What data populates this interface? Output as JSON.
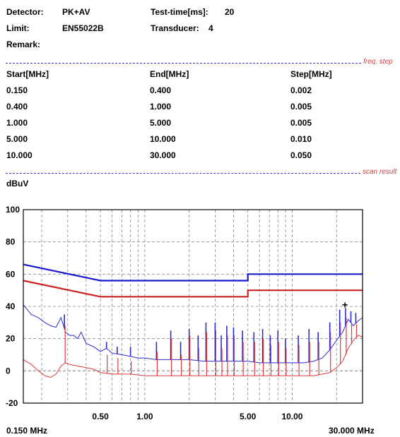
{
  "header": {
    "detector_label": "Detector:",
    "detector_value": "PK+AV",
    "testtime_label": "Test-time[ms]:",
    "testtime_value": "20",
    "limit_label": "Limit:",
    "limit_value": "EN55022B",
    "transducer_label": "Transducer:",
    "transducer_value": "4",
    "remark_label": "Remark:"
  },
  "sections": {
    "freq_step": "freq, step",
    "scan_result": "scan result"
  },
  "table": {
    "headers": [
      "Start[MHz]",
      "End[MHz]",
      "Step[MHz]"
    ],
    "rows": [
      [
        "0.150",
        "0.400",
        "0.002"
      ],
      [
        "0.400",
        "1.000",
        "0.005"
      ],
      [
        "1.000",
        "5.000",
        "0.005"
      ],
      [
        "5.000",
        "10.000",
        "0.010"
      ],
      [
        "10.000",
        "30.000",
        "0.050"
      ]
    ]
  },
  "chart_data": {
    "type": "line",
    "ylabel": "dBuV",
    "xlabel": "",
    "x_scale": "log",
    "xlim": [
      0.15,
      30
    ],
    "ylim": [
      -20,
      100
    ],
    "grid": true,
    "yticks": [
      100,
      80,
      60,
      40,
      20,
      0,
      -20
    ],
    "xtick_labels": [
      {
        "x": 0.5,
        "label": "0.50"
      },
      {
        "x": 1.0,
        "label": "1.00"
      },
      {
        "x": 5.0,
        "label": "5.00"
      },
      {
        "x": 10.0,
        "label": "10.00"
      }
    ],
    "xrange_labels": {
      "start": "0.150 MHz",
      "end": "30.000 MHz"
    },
    "colors": {
      "limit_qp": "#1a1acc",
      "limit_av": "#cc2222",
      "trace_pk": "#2a2ad0",
      "trace_av": "#e03a3a"
    },
    "series": [
      {
        "key": "limit_qp",
        "x": [
          0.15,
          0.5,
          5.0,
          5.0,
          30.0
        ],
        "y": [
          66,
          56,
          56,
          60,
          60
        ]
      },
      {
        "key": "limit_av",
        "x": [
          0.15,
          0.5,
          5.0,
          5.0,
          30.0
        ],
        "y": [
          56,
          46,
          46,
          50,
          50
        ]
      },
      {
        "key": "trace_pk",
        "x": [
          0.15,
          0.17,
          0.19,
          0.21,
          0.23,
          0.25,
          0.27,
          0.29,
          0.31,
          0.33,
          0.35,
          0.37,
          0.4,
          0.45,
          0.5,
          0.55,
          0.6,
          0.7,
          0.8,
          0.9,
          1.0,
          1.2,
          1.5,
          2.0,
          2.5,
          3.0,
          4.0,
          5.0,
          6.0,
          7.0,
          8.0,
          10.0,
          12.0,
          14.0,
          16.0,
          18.0,
          20.0,
          22.0,
          24.0,
          26.0,
          28.0,
          30.0
        ],
        "y": [
          41,
          35,
          33,
          30,
          28,
          27,
          33,
          24,
          22,
          22,
          20,
          24,
          17,
          15,
          12,
          14,
          11,
          10,
          9,
          8,
          8,
          7,
          7,
          7,
          6,
          6,
          6,
          6,
          5,
          5,
          5,
          5,
          5,
          6,
          8,
          13,
          19,
          24,
          32,
          28,
          31,
          33
        ]
      },
      {
        "key": "trace_av",
        "x": [
          0.15,
          0.17,
          0.19,
          0.21,
          0.23,
          0.25,
          0.27,
          0.29,
          0.31,
          0.35,
          0.4,
          0.45,
          0.5,
          0.6,
          0.7,
          0.8,
          1.0,
          1.2,
          1.5,
          2.0,
          3.0,
          4.0,
          5.0,
          6.0,
          8.0,
          10.0,
          12.0,
          14.0,
          16.0,
          18.0,
          20.0,
          22.0,
          24.0,
          26.0,
          28.0,
          30.0
        ],
        "y": [
          7,
          4,
          0,
          -3,
          -4,
          -2,
          3,
          5,
          4,
          3,
          2,
          1,
          -1,
          -2,
          -2,
          -2,
          -3,
          -3,
          -3,
          -3,
          -3,
          -3,
          -3,
          -3,
          -3,
          -3,
          -3,
          -3,
          -2,
          -1,
          2,
          6,
          14,
          19,
          22,
          21
        ]
      }
    ],
    "peaks": [
      {
        "x": 0.285,
        "pk": 35,
        "av": 28
      },
      {
        "x": 0.55,
        "pk": 18,
        "av": 10
      },
      {
        "x": 0.65,
        "pk": 15,
        "av": 8
      },
      {
        "x": 0.8,
        "pk": 15,
        "av": 6
      },
      {
        "x": 1.2,
        "pk": 18,
        "av": 12
      },
      {
        "x": 1.5,
        "pk": 25,
        "av": 20
      },
      {
        "x": 1.75,
        "pk": 18,
        "av": 10
      },
      {
        "x": 2.0,
        "pk": 26,
        "av": 22
      },
      {
        "x": 2.3,
        "pk": 22,
        "av": 14
      },
      {
        "x": 2.6,
        "pk": 30,
        "av": 24
      },
      {
        "x": 3.0,
        "pk": 30,
        "av": 25
      },
      {
        "x": 3.3,
        "pk": 22,
        "av": 14
      },
      {
        "x": 3.6,
        "pk": 28,
        "av": 22
      },
      {
        "x": 4.0,
        "pk": 27,
        "av": 22
      },
      {
        "x": 4.6,
        "pk": 25,
        "av": 18
      },
      {
        "x": 5.5,
        "pk": 24,
        "av": 18
      },
      {
        "x": 6.3,
        "pk": 26,
        "av": 20
      },
      {
        "x": 7.1,
        "pk": 22,
        "av": 16
      },
      {
        "x": 8.0,
        "pk": 25,
        "av": 18
      },
      {
        "x": 9.0,
        "pk": 20,
        "av": 14
      },
      {
        "x": 11.0,
        "pk": 22,
        "av": 16
      },
      {
        "x": 13.0,
        "pk": 26,
        "av": 18
      },
      {
        "x": 15.0,
        "pk": 24,
        "av": 18
      },
      {
        "x": 18.0,
        "pk": 30,
        "av": 24
      },
      {
        "x": 21.0,
        "pk": 38,
        "av": 30
      },
      {
        "x": 23.0,
        "pk": 39,
        "av": 33
      },
      {
        "x": 25.0,
        "pk": 37,
        "av": 30
      },
      {
        "x": 27.0,
        "pk": 36,
        "av": 29
      }
    ],
    "marker": {
      "x": 22.8,
      "y": 41,
      "symbol": "+"
    }
  }
}
